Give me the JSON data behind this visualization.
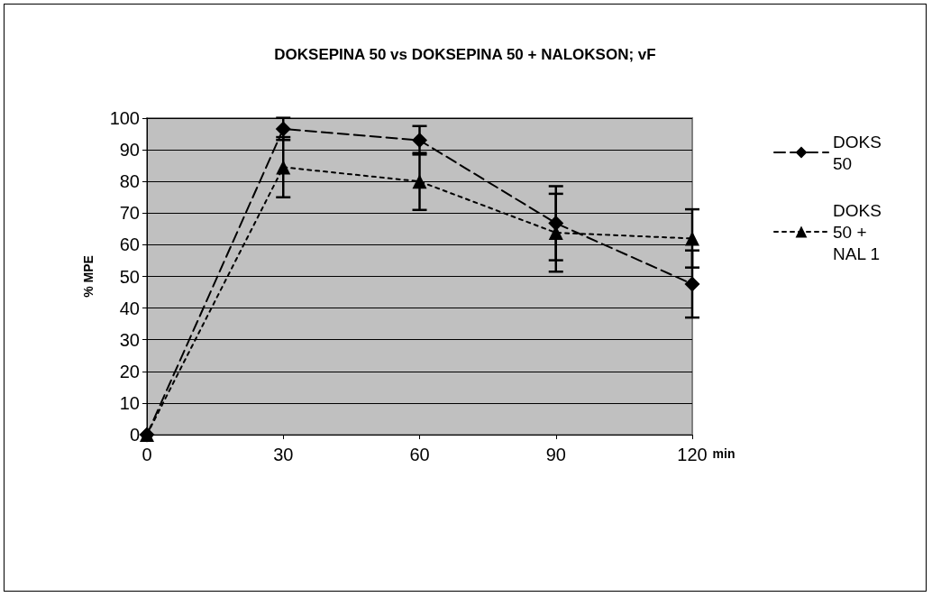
{
  "chart_data": {
    "type": "line",
    "title": "DOKSEPINA 50 vs DOKSEPINA 50 + NALOKSON; vF",
    "xlabel": "min",
    "ylabel": "% MPE",
    "x": [
      0,
      30,
      60,
      90,
      120
    ],
    "series": [
      {
        "name": "DOKS 50",
        "color": "#000000",
        "marker": "diamond",
        "line_style": "dashed",
        "values": [
          0,
          96.6,
          93,
          66.8,
          47.6
        ],
        "errors": [
          null,
          3.5,
          4.5,
          11.7,
          10.6
        ]
      },
      {
        "name": "DOKS 50 + NAL 1",
        "color": "#000000",
        "marker": "triangle",
        "line_style": "dotted",
        "values": [
          0,
          84.5,
          80,
          63.8,
          62
        ],
        "errors": [
          null,
          9.5,
          9,
          12.3,
          9.2
        ]
      }
    ],
    "xlim": [
      0,
      120
    ],
    "xticks": [
      0,
      30,
      60,
      90,
      120
    ],
    "ylim": [
      0,
      100
    ],
    "yticks": [
      0,
      10,
      20,
      30,
      40,
      50,
      60,
      70,
      80,
      90,
      100
    ],
    "grid": "y",
    "legend": "right"
  }
}
